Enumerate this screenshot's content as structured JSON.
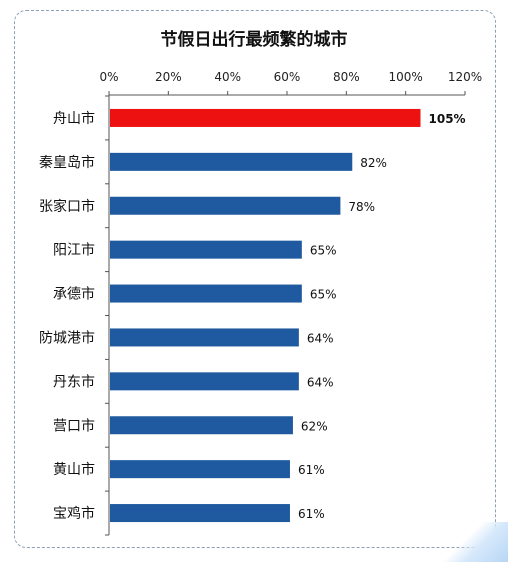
{
  "chart_data": {
    "type": "bar",
    "orientation": "horizontal",
    "title": "节假日出行最频繁的城市",
    "categories": [
      "舟山市",
      "秦皇岛市",
      "张家口市",
      "阳江市",
      "承德市",
      "防城港市",
      "丹东市",
      "营口市",
      "黄山市",
      "宝鸡市"
    ],
    "values": [
      105,
      82,
      78,
      65,
      65,
      64,
      64,
      62,
      61,
      61
    ],
    "value_labels": [
      "105%",
      "82%",
      "78%",
      "65%",
      "65%",
      "64%",
      "64%",
      "62%",
      "61%",
      "61%"
    ],
    "x_ticks": [
      0,
      20,
      40,
      60,
      80,
      100,
      120
    ],
    "x_tick_labels": [
      "0%",
      "20%",
      "40%",
      "60%",
      "80%",
      "100%",
      "120%"
    ],
    "xlim": [
      0,
      120
    ],
    "axis_position": "top",
    "grid": false,
    "colors": {
      "highlight": "#ee1111",
      "bar": "#1f5aa0"
    },
    "highlight_index": 0
  }
}
